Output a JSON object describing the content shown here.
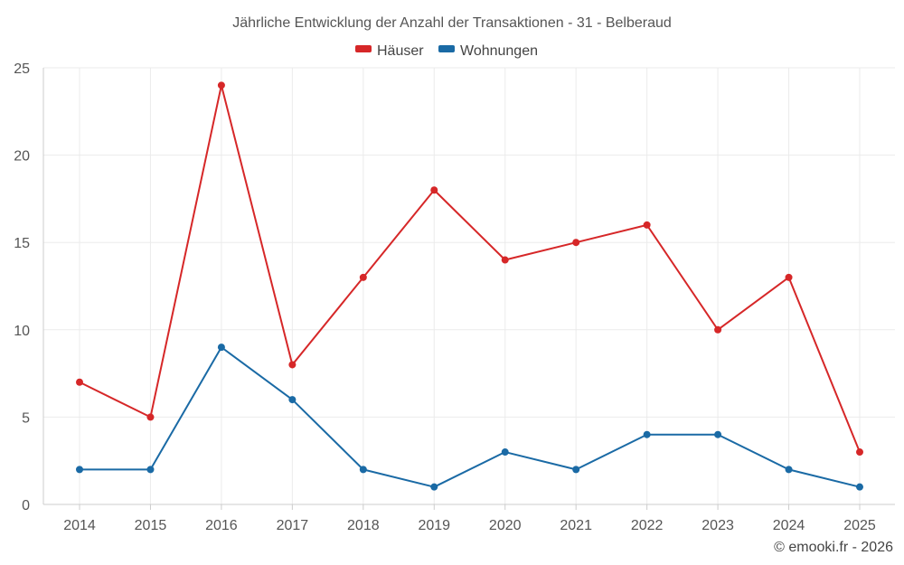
{
  "chart_data": {
    "type": "line",
    "title": "Jährliche Entwicklung der Anzahl der Transaktionen - 31 - Belberaud",
    "categories": [
      "2014",
      "2015",
      "2016",
      "2017",
      "2018",
      "2019",
      "2020",
      "2021",
      "2022",
      "2023",
      "2024",
      "2025"
    ],
    "series": [
      {
        "name": "Häuser",
        "color": "#d62728",
        "values": [
          7,
          5,
          24,
          8,
          13,
          18,
          14,
          15,
          16,
          10,
          13,
          3
        ]
      },
      {
        "name": "Wohnungen",
        "color": "#1a6aa5",
        "values": [
          2,
          2,
          9,
          6,
          2,
          1,
          3,
          2,
          4,
          4,
          2,
          1
        ]
      }
    ],
    "ylim": [
      0,
      25
    ],
    "yticks": [
      0,
      5,
      10,
      15,
      20,
      25
    ],
    "xlabel": "",
    "ylabel": "",
    "legend_position": "top-center",
    "grid": true
  },
  "credit": "© emooki.fr - 2026"
}
